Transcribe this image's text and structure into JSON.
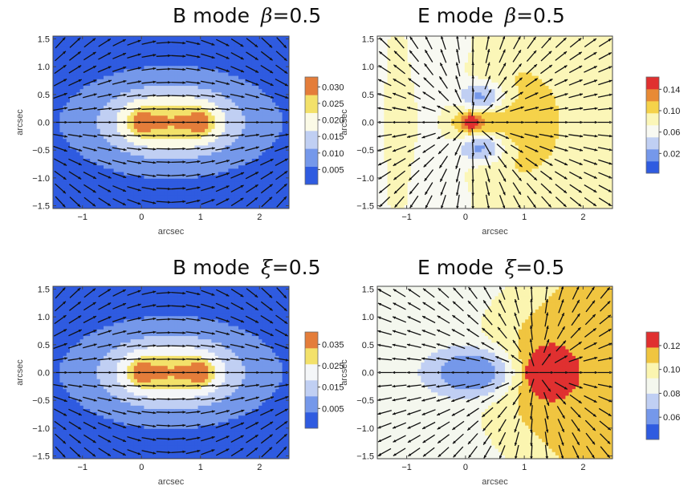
{
  "chart_data": [
    {
      "type": "heatmap",
      "title_mode": "B mode",
      "title_param": "β",
      "title_value": "=0.5",
      "xlabel": "arcsec",
      "ylabel": "arcsec",
      "xlim": [
        -1.5,
        2.5
      ],
      "ylim": [
        -1.55,
        1.55
      ],
      "xticks": [
        -1,
        0,
        1,
        2
      ],
      "yticks": [
        -1.5,
        -1.0,
        -0.5,
        0.0,
        0.5,
        1.0,
        1.5
      ],
      "ytick_labels": [
        "−1.5",
        "−1.0",
        "−0.5",
        "0.0",
        "0.5",
        "1.0",
        "1.5"
      ],
      "xtick_labels": [
        "−1",
        "0",
        "1",
        "2"
      ],
      "colorbar": {
        "colors": [
          "#2f5be0",
          "#7598ea",
          "#c0cff3",
          "#fbfae6",
          "#f3e16a",
          "#e47d3a"
        ],
        "ticks": [
          "0.005",
          "0.010",
          "0.015",
          "0.020",
          "0.025",
          "0.030"
        ]
      },
      "field_pattern": "B",
      "lens_positions": [
        0,
        1
      ]
    },
    {
      "type": "heatmap",
      "title_mode": "E mode",
      "title_param": "β",
      "title_value": "=0.5",
      "xlabel": "arcsec",
      "ylabel": "arcsec",
      "xlim": [
        -1.5,
        2.5
      ],
      "ylim": [
        -1.55,
        1.55
      ],
      "xticks": [
        -1,
        0,
        1,
        2
      ],
      "yticks": [
        -1.5,
        -1.0,
        -0.5,
        0.0,
        0.5,
        1.0,
        1.5
      ],
      "ytick_labels": [
        "−1.5",
        "−1.0",
        "−0.5",
        "0.0",
        "0.5",
        "1.0",
        "1.5"
      ],
      "xtick_labels": [
        "−1",
        "0",
        "1",
        "2"
      ],
      "colorbar": {
        "colors": [
          "#2f5be0",
          "#7598ea",
          "#c0cff3",
          "#f8f9f2",
          "#fbf6b8",
          "#f5d24a",
          "#e88a35",
          "#e03030"
        ],
        "ticks": [
          "0.02",
          "0.06",
          "0.10",
          "0.14"
        ]
      },
      "field_pattern": "E_beta",
      "lens_positions": [
        0,
        0.3
      ]
    },
    {
      "type": "heatmap",
      "title_mode": "B mode",
      "title_param": "ξ",
      "title_value": "=0.5",
      "xlabel": "arcsec",
      "ylabel": "arcsec",
      "xlim": [
        -1.5,
        2.5
      ],
      "ylim": [
        -1.55,
        1.55
      ],
      "xticks": [
        -1,
        0,
        1,
        2
      ],
      "yticks": [
        -1.5,
        -1.0,
        -0.5,
        0.0,
        0.5,
        1.0,
        1.5
      ],
      "ytick_labels": [
        "−1.5",
        "−1.0",
        "−0.5",
        "0.0",
        "0.5",
        "1.0",
        "1.5"
      ],
      "xtick_labels": [
        "−1",
        "0",
        "1",
        "2"
      ],
      "colorbar": {
        "colors": [
          "#2f5be0",
          "#7598ea",
          "#c0cff3",
          "#f4f6f8",
          "#f3e16a",
          "#e47d3a"
        ],
        "ticks": [
          "0.005",
          "0.015",
          "0.025",
          "0.035"
        ]
      },
      "field_pattern": "B",
      "lens_positions": [
        0,
        1
      ]
    },
    {
      "type": "heatmap",
      "title_mode": "E mode",
      "title_param": "ξ",
      "title_value": "=0.5",
      "xlabel": "arcsec",
      "ylabel": "arcsec",
      "xlim": [
        -1.5,
        2.5
      ],
      "ylim": [
        -1.55,
        1.55
      ],
      "xticks": [
        -1,
        0,
        1,
        2
      ],
      "yticks": [
        -1.5,
        -1.0,
        -0.5,
        0.0,
        0.5,
        1.0,
        1.5
      ],
      "ytick_labels": [
        "−1.5",
        "−1.0",
        "−0.5",
        "0.0",
        "0.5",
        "1.0",
        "1.5"
      ],
      "xtick_labels": [
        "−1",
        "0",
        "1",
        "2"
      ],
      "colorbar": {
        "colors": [
          "#2f5be0",
          "#7598ea",
          "#c0cff3",
          "#f4f7ee",
          "#fbf5b0",
          "#f0c540",
          "#e03030"
        ],
        "ticks": [
          "0.06",
          "0.08",
          "0.10",
          "0.12"
        ]
      },
      "field_pattern": "E_xi",
      "lens_positions": [
        0,
        1.2
      ]
    }
  ]
}
